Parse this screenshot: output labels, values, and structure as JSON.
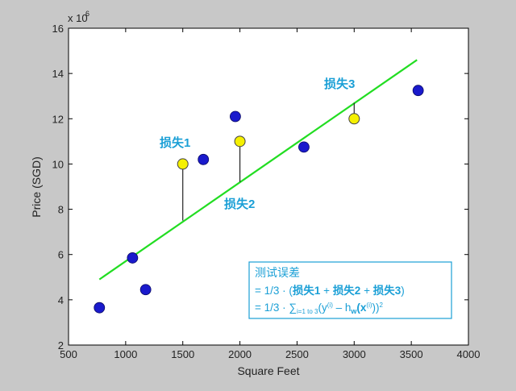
{
  "chart_data": {
    "type": "scatter",
    "xlabel": "Square Feet",
    "ylabel": "Price (SGD)",
    "y_multiplier_label": "x 10",
    "y_multiplier_exp": "6",
    "xlim": [
      500,
      4000
    ],
    "ylim": [
      2,
      16
    ],
    "x_ticks": [
      500,
      1000,
      1500,
      2000,
      2500,
      3000,
      3500,
      4000
    ],
    "y_ticks": [
      2,
      4,
      6,
      8,
      10,
      12,
      14,
      16
    ],
    "grid": false,
    "training_points": [
      {
        "x": 770,
        "y": 3.65
      },
      {
        "x": 1060,
        "y": 5.85
      },
      {
        "x": 1175,
        "y": 4.45
      },
      {
        "x": 1680,
        "y": 10.2
      },
      {
        "x": 1960,
        "y": 12.1
      },
      {
        "x": 2560,
        "y": 10.75
      },
      {
        "x": 3560,
        "y": 13.25
      }
    ],
    "test_points": [
      {
        "x": 1500,
        "y": 10.0
      },
      {
        "x": 2000,
        "y": 11.0
      },
      {
        "x": 3000,
        "y": 12.0
      }
    ],
    "fit_line": {
      "x": [
        770,
        3550
      ],
      "y": [
        4.9,
        14.6
      ]
    },
    "error_lines": [
      {
        "x": 1500,
        "y_from": 10.0,
        "y_to": 7.5
      },
      {
        "x": 2000,
        "y_from": 11.0,
        "y_to": 9.2
      },
      {
        "x": 3000,
        "y_from": 12.0,
        "y_to": 12.7
      }
    ],
    "annotations": [
      "损失1",
      "损失2",
      "损失3"
    ],
    "colors": {
      "axes_bg": "#ffffff",
      "figure_bg": "#c8c8c8",
      "training": "#1a1acc",
      "test": "#f5f000",
      "fit_line": "#22dd22",
      "error_line": "#222222",
      "annotation": "#1a9fd6"
    }
  },
  "formula_box": {
    "line1": "测试误差",
    "line2_prefix": "= 1/3 · (",
    "line2_loss1": "损失1",
    "plus": " + ",
    "line2_loss2": "损失2",
    "line2_loss3": "损失3",
    "line2_suffix": ")",
    "line3_prefix": "= 1/3 · ∑",
    "line3_sub": "i=1 to 3",
    "line3_paren_open": "(y",
    "sup_i": "(i)",
    "line3_minus": " – h",
    "sub_w": "w",
    "line3_paren2": "(x",
    "line3_close": "))",
    "sup_2": "2"
  }
}
